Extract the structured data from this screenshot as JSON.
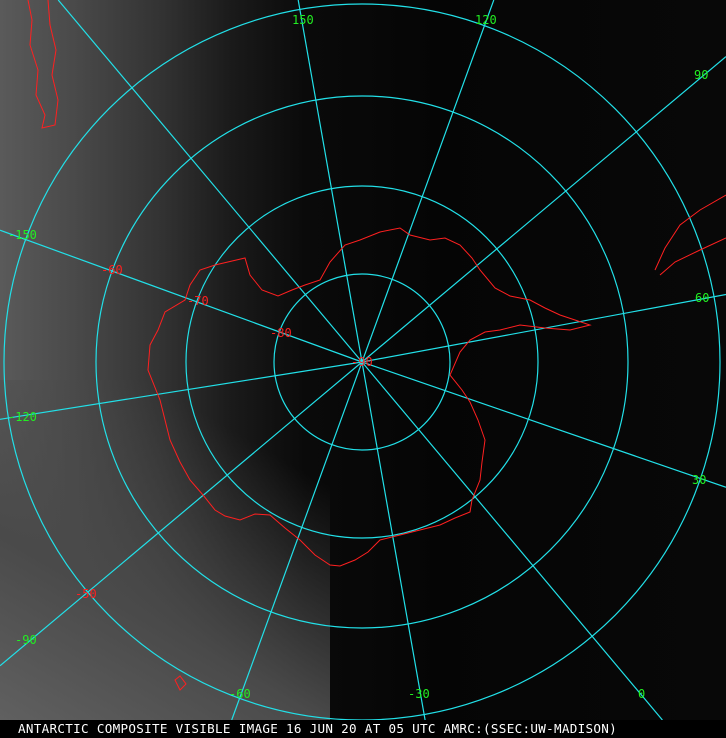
{
  "image": {
    "caption": "ANTARCTIC COMPOSITE VISIBLE IMAGE 16 JUN 20 AT 05 UTC AMRC:(SSEC:UW-MADISON)",
    "grid_color": "#22e0e8",
    "coastline_color": "#ff2020",
    "longitude_label_color": "#22ee22",
    "latitude_label_color": "#ff2020"
  },
  "longitude_labels": [
    "150",
    "120",
    "90",
    "60",
    "30",
    "0",
    "-30",
    "-60",
    "-90",
    "-120",
    "-150"
  ],
  "latitude_labels": [
    "-50",
    "-60",
    "-70",
    "-80",
    "-90"
  ]
}
